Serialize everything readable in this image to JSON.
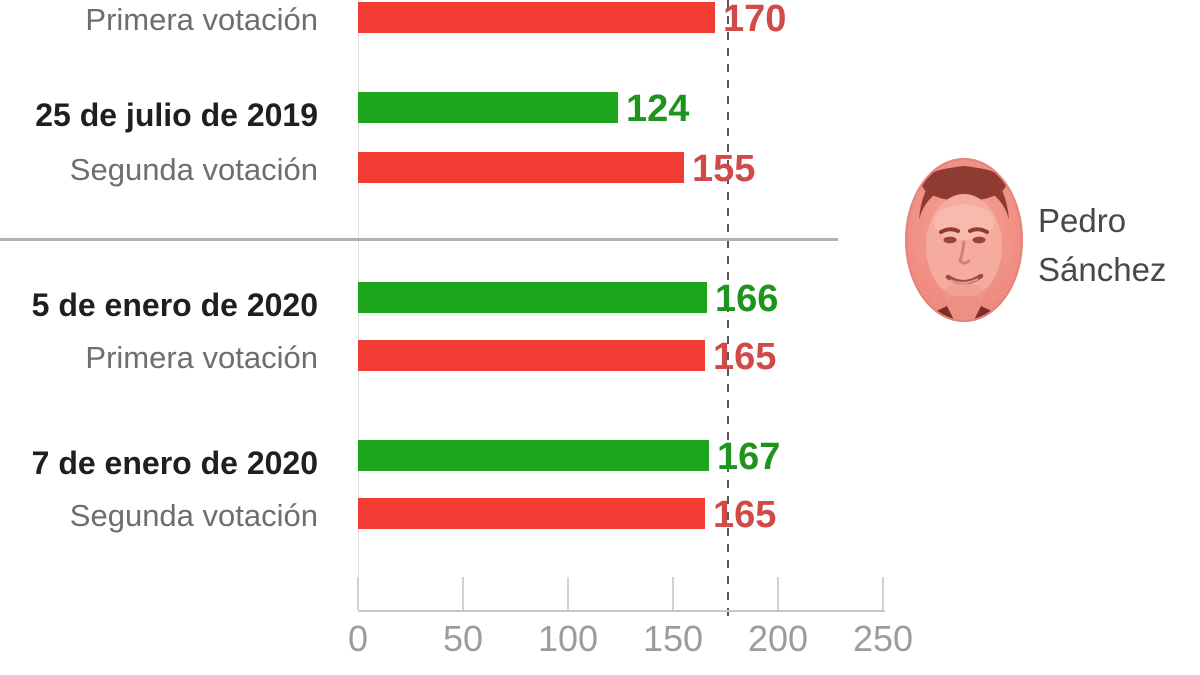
{
  "chart_data": {
    "type": "bar",
    "orientation": "horizontal",
    "axis": {
      "min": 0,
      "max": 250,
      "ticks": [
        "0",
        "50",
        "100",
        "150",
        "200",
        "250"
      ],
      "tick_values": [
        0,
        50,
        100,
        150,
        200,
        250
      ],
      "grid": false
    },
    "majority_line_value": 176,
    "rows": [
      {
        "label": "Primera votación",
        "label_style": "sub",
        "value": 170,
        "series": "red"
      },
      {
        "label": "25 de julio de 2019",
        "label_style": "date",
        "value": 124,
        "series": "green"
      },
      {
        "label": "Segunda votación",
        "label_style": "sub",
        "value": 155,
        "series": "red"
      },
      {
        "label": "5 de enero de 2020",
        "label_style": "date",
        "value": 166,
        "series": "green"
      },
      {
        "label": "Primera votación",
        "label_style": "sub",
        "value": 165,
        "series": "red"
      },
      {
        "label": "7 de enero de 2020",
        "label_style": "date",
        "value": 167,
        "series": "green"
      },
      {
        "label": "Segunda votación",
        "label_style": "sub",
        "value": 165,
        "series": "red"
      }
    ]
  },
  "person": {
    "name": "Pedro Sánchez",
    "lines": [
      "Pedro",
      "Sánchez"
    ]
  },
  "colors": {
    "green_bar": "#1ea51e",
    "red_bar": "#f23b33",
    "green_value_text": "#1e941e",
    "red_value_text": "#d04a48",
    "date_text": "#1f1f1f",
    "sub_text": "#6e6e6e",
    "tick_text": "#9c9c9c",
    "axis_line": "#c7c7c7",
    "divider": "#b1b1b1",
    "majority_line": "#575757"
  }
}
